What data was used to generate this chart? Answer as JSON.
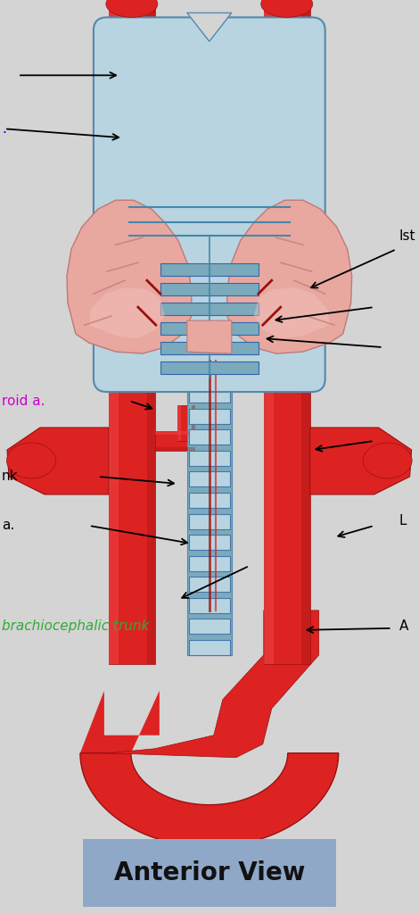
{
  "background_color": "#d4d4d4",
  "title": "Anterior View",
  "title_bg": "#8fa8c8",
  "title_color": "#111111",
  "title_fontsize": 20,
  "red": "#cc1111",
  "red_dark": "#991111",
  "red_light": "#ee4444",
  "red_mid": "#dd2222",
  "blue_larynx": "#90b8cc",
  "blue_larynx_light": "#b8d4e0",
  "blue_trachea": "#7aaabb",
  "pink_thyroid": "#e8a8a0",
  "pink_thyroid_dark": "#c07878",
  "pink_thyroid_light": "#f0c0b8",
  "label_left_1_text": ".",
  "label_left_2_text": ".",
  "label_ist": "Ist",
  "label_roid": "roid a.",
  "label_roid_color": "#cc00cc",
  "label_nk": "nk",
  "label_a": "a.",
  "label_L": "L",
  "label_brachio": "brachiocephalic trunk",
  "label_brachio_color": "#33aa33",
  "label_A": "A"
}
